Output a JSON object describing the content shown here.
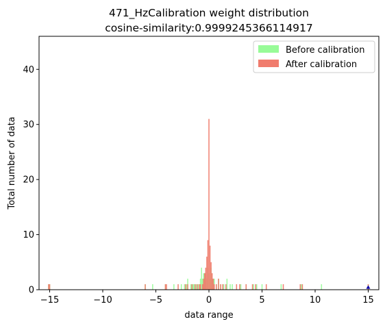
{
  "chart_data": {
    "type": "bar",
    "title_line1": "471_HzCalibration weight distribution",
    "title_line2": "cosine-similarity:0.9999245366114917",
    "xlabel": "data range",
    "ylabel": "Total number of data",
    "xlim": [
      -16,
      16
    ],
    "ylim": [
      0,
      46
    ],
    "xticks": [
      -15,
      -10,
      -5,
      0,
      5,
      10,
      15
    ],
    "xtick_labels": [
      "−15",
      "−10",
      "−5",
      "0",
      "5",
      "10",
      "15"
    ],
    "yticks": [
      0,
      10,
      20,
      30,
      40
    ],
    "ytick_labels": [
      "0",
      "10",
      "20",
      "30",
      "40"
    ],
    "legend_position": "top-right",
    "marker": {
      "x": 15.0,
      "y": 0.3,
      "color": "#0000aa"
    },
    "series": [
      {
        "name": "Before calibration",
        "color": "#98fb98",
        "bars": [
          [
            -15.1,
            1
          ],
          [
            -15.0,
            1
          ],
          [
            -6.0,
            1
          ],
          [
            -5.3,
            1
          ],
          [
            -4.1,
            1
          ],
          [
            -3.3,
            1
          ],
          [
            -2.6,
            1
          ],
          [
            -2.3,
            1
          ],
          [
            -2.1,
            1
          ],
          [
            -2.0,
            2
          ],
          [
            -1.7,
            1
          ],
          [
            -1.5,
            1
          ],
          [
            -1.4,
            1
          ],
          [
            -1.2,
            1
          ],
          [
            -1.0,
            1
          ],
          [
            -0.8,
            2
          ],
          [
            -0.7,
            4
          ],
          [
            -0.6,
            2
          ],
          [
            -0.5,
            3
          ],
          [
            -0.4,
            3
          ],
          [
            -0.3,
            3
          ],
          [
            -0.2,
            2
          ],
          [
            -0.1,
            4
          ],
          [
            0.0,
            3
          ],
          [
            0.1,
            2
          ],
          [
            0.2,
            4
          ],
          [
            0.3,
            2
          ],
          [
            0.4,
            2
          ],
          [
            0.5,
            2
          ],
          [
            0.7,
            1
          ],
          [
            0.9,
            2
          ],
          [
            1.1,
            1
          ],
          [
            1.4,
            1
          ],
          [
            1.7,
            2
          ],
          [
            2.0,
            1
          ],
          [
            2.2,
            1
          ],
          [
            3.0,
            1
          ],
          [
            3.5,
            1
          ],
          [
            4.2,
            1
          ],
          [
            4.5,
            1
          ],
          [
            5.0,
            1
          ],
          [
            6.8,
            1
          ],
          [
            8.7,
            1
          ],
          [
            10.6,
            1
          ],
          [
            15.0,
            1
          ]
        ]
      },
      {
        "name": "After calibration",
        "color": "#f07c6d",
        "bars": [
          [
            -15.1,
            1
          ],
          [
            -15.0,
            1
          ],
          [
            -6.0,
            1
          ],
          [
            -4.1,
            1
          ],
          [
            -4.0,
            1
          ],
          [
            -2.9,
            1
          ],
          [
            -2.2,
            1
          ],
          [
            -2.0,
            1
          ],
          [
            -1.6,
            1
          ],
          [
            -1.3,
            1
          ],
          [
            -1.1,
            1
          ],
          [
            -0.9,
            1
          ],
          [
            -0.8,
            1
          ],
          [
            -0.6,
            1
          ],
          [
            -0.5,
            2
          ],
          [
            -0.4,
            3
          ],
          [
            -0.3,
            4
          ],
          [
            -0.2,
            6
          ],
          [
            -0.1,
            9
          ],
          [
            0.0,
            31
          ],
          [
            0.1,
            8
          ],
          [
            0.2,
            5
          ],
          [
            0.3,
            3
          ],
          [
            0.4,
            2
          ],
          [
            0.5,
            1
          ],
          [
            0.7,
            1
          ],
          [
            0.9,
            2
          ],
          [
            1.1,
            1
          ],
          [
            1.3,
            1
          ],
          [
            1.6,
            1
          ],
          [
            2.6,
            1
          ],
          [
            2.9,
            1
          ],
          [
            3.5,
            1
          ],
          [
            4.1,
            1
          ],
          [
            4.4,
            1
          ],
          [
            5.4,
            1
          ],
          [
            7.0,
            1
          ],
          [
            8.6,
            1
          ],
          [
            8.8,
            1
          ],
          [
            15.0,
            1
          ]
        ]
      }
    ]
  }
}
